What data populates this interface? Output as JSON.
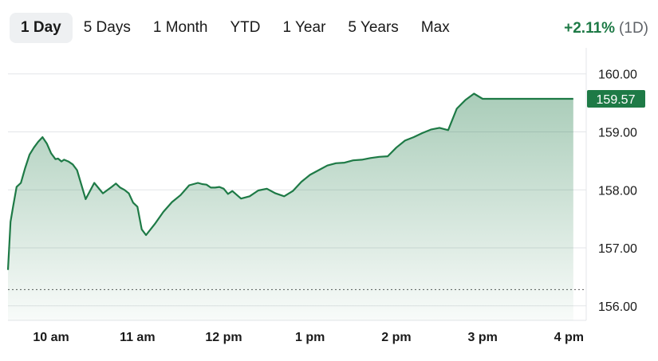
{
  "tabs": [
    {
      "label": "1 Day",
      "active": true
    },
    {
      "label": "5 Days",
      "active": false
    },
    {
      "label": "1 Month",
      "active": false
    },
    {
      "label": "YTD",
      "active": false
    },
    {
      "label": "1 Year",
      "active": false
    },
    {
      "label": "5 Years",
      "active": false
    },
    {
      "label": "Max",
      "active": false
    }
  ],
  "change": {
    "percent": "+2.11%",
    "period": "(1D)"
  },
  "colors": {
    "line": "#1e7a46",
    "badge": "#1e7a46",
    "grid": "#e3e5e8",
    "prev_close": "#6b6b6b"
  },
  "chart_data": {
    "type": "area",
    "current_price_label": "159.57",
    "previous_close": 156.28,
    "ylim": [
      155.75,
      160.45
    ],
    "y_ticks": [
      160.0,
      159.0,
      158.0,
      157.0,
      156.0
    ],
    "y_tick_labels": [
      "160.00",
      "159.00",
      "158.00",
      "157.00",
      "156.00"
    ],
    "x_ticks": [
      10,
      11,
      12,
      13,
      14,
      15,
      16
    ],
    "x_tick_labels": [
      "10 am",
      "11 am",
      "12 pm",
      "1 pm",
      "2 pm",
      "3 pm",
      "4 pm"
    ],
    "xlim": [
      9.5,
      16.2
    ],
    "series": [
      {
        "x": [
          9.5,
          9.53,
          9.56,
          9.6,
          9.65,
          9.7,
          9.75,
          9.8,
          9.85,
          9.9,
          9.95,
          10.0,
          10.05,
          10.08,
          10.12,
          10.15,
          10.2,
          10.25,
          10.3,
          10.4,
          10.5,
          10.6,
          10.7,
          10.75,
          10.8,
          10.85,
          10.9,
          10.95,
          11.0,
          11.05,
          11.1,
          11.2,
          11.3,
          11.4,
          11.5,
          11.6,
          11.7,
          11.75,
          11.8,
          11.85,
          11.9,
          11.95,
          12.0,
          12.05,
          12.1,
          12.2,
          12.3,
          12.4,
          12.5,
          12.6,
          12.7,
          12.8,
          12.9,
          13.0,
          13.1,
          13.2,
          13.3,
          13.4,
          13.5,
          13.6,
          13.7,
          13.8,
          13.9,
          14.0,
          14.1,
          14.2,
          14.3,
          14.4,
          14.5,
          14.6,
          14.7,
          14.8,
          14.9,
          15.0,
          15.1,
          15.2,
          15.3,
          15.4,
          15.5,
          15.6,
          15.7,
          15.8,
          15.85,
          15.9,
          15.95,
          16.0,
          16.03,
          16.05
        ],
        "y": [
          156.62,
          157.45,
          157.72,
          158.05,
          158.12,
          158.38,
          158.61,
          158.73,
          158.83,
          158.91,
          158.8,
          158.63,
          158.53,
          158.54,
          158.49,
          158.52,
          158.49,
          158.44,
          158.34,
          157.84,
          158.12,
          157.94,
          158.05,
          158.11,
          158.04,
          158.0,
          157.94,
          157.78,
          157.71,
          157.32,
          157.22,
          157.41,
          157.62,
          157.79,
          157.91,
          158.08,
          158.12,
          158.1,
          158.09,
          158.04,
          158.04,
          158.05,
          158.02,
          157.93,
          157.98,
          157.85,
          157.89,
          157.99,
          158.02,
          157.94,
          157.89,
          157.98,
          158.14,
          158.26,
          158.34,
          158.42,
          158.46,
          158.47,
          158.51,
          158.52,
          158.55,
          158.57,
          158.58,
          158.73,
          158.85,
          158.91,
          158.98,
          159.04,
          159.07,
          159.03,
          159.4,
          159.55,
          159.66,
          159.57,
          159.57,
          159.57,
          159.57,
          159.57,
          159.57,
          159.57,
          159.57,
          159.57,
          159.57,
          159.57,
          159.57,
          159.57,
          159.57,
          159.57
        ]
      }
    ]
  }
}
